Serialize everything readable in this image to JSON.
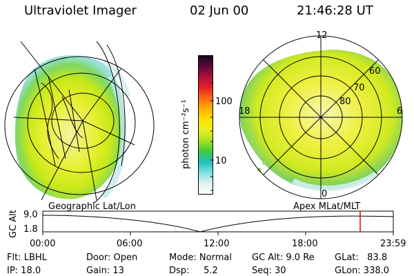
{
  "header": {
    "instrument": "Ultraviolet Imager",
    "date": "02 Jun 00",
    "time": "21:46:28 UT"
  },
  "colorbar": {
    "unit_label": "photon cm⁻²s⁻¹",
    "ticks": [
      "100",
      "10"
    ],
    "scale": "log",
    "colors": [
      "#1a0820",
      "#5a0a3a",
      "#b0103a",
      "#e8202a",
      "#ff6a10",
      "#ffb000",
      "#ffe000",
      "#e8f020",
      "#a8e020",
      "#40c840",
      "#20c0c0",
      "#80e0e0",
      "#e0f0f0",
      "#ffffff"
    ]
  },
  "left_panel": {
    "label": "Geographic Lat/Lon"
  },
  "right_panel": {
    "label": "Apex MLat/MLT",
    "mlt_labels": {
      "top": "12",
      "left": "18",
      "right": "6",
      "bottom": "0"
    },
    "lat_labels": [
      "60",
      "70",
      "80"
    ]
  },
  "altitude_plot": {
    "ylabel": "GC Alt",
    "yticks": [
      "9.0",
      "1.8"
    ],
    "xticks": [
      "00:00",
      "06:00",
      "12:00",
      "18:00",
      "23:59"
    ],
    "marker_time": "21:46",
    "marker_color": "#e00000"
  },
  "status": {
    "flt": "Flt: LBHL",
    "ip": "IP: 18.0",
    "door": "Door: Open",
    "gain": "Gain: 13",
    "mode": "Mode: Normal",
    "dsp": "Dsp:     5.2",
    "gc_alt": "GC Alt: 9.0 Re",
    "seq": "Seq: 30",
    "glat": "GLat:   83.8",
    "glon": "GLon: 338.0"
  }
}
